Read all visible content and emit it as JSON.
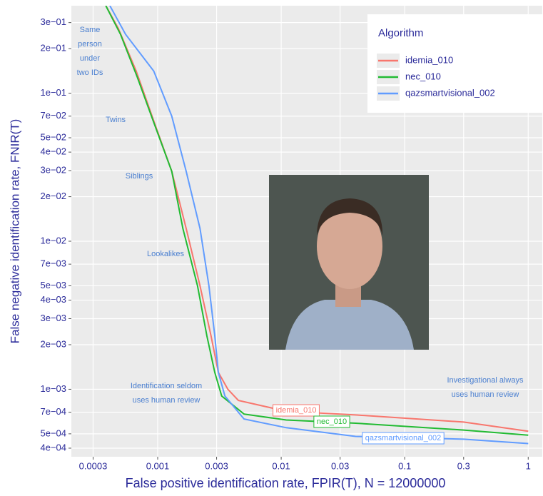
{
  "chart_data": {
    "type": "line",
    "x_label": "False positive identification rate, FPIR(T), N = 12000000",
    "y_label": "False negative identification rate, FNIR(T)",
    "log_x": true,
    "log_y": true,
    "grid": true,
    "xlim": [
      0.0002,
      1.3
    ],
    "ylim": [
      0.00035,
      0.39
    ],
    "xticks": [
      0.0003,
      0.001,
      0.003,
      0.01,
      0.03,
      0.1,
      0.3,
      1
    ],
    "yticks": [
      {
        "value": 0.3,
        "label": "3e−01"
      },
      {
        "value": 0.2,
        "label": "2e−01"
      },
      {
        "value": 0.1,
        "label": "1e−01"
      },
      {
        "value": 0.07,
        "label": "7e−02"
      },
      {
        "value": 0.05,
        "label": "5e−02"
      },
      {
        "value": 0.04,
        "label": "4e−02"
      },
      {
        "value": 0.03,
        "label": "3e−02"
      },
      {
        "value": 0.02,
        "label": "2e−02"
      },
      {
        "value": 0.01,
        "label": "1e−02"
      },
      {
        "value": 0.007,
        "label": "7e−03"
      },
      {
        "value": 0.005,
        "label": "5e−03"
      },
      {
        "value": 0.004,
        "label": "4e−03"
      },
      {
        "value": 0.003,
        "label": "3e−03"
      },
      {
        "value": 0.002,
        "label": "2e−03"
      },
      {
        "value": 0.001,
        "label": "1e−03"
      },
      {
        "value": 0.0007,
        "label": "7e−04"
      },
      {
        "value": 0.0005,
        "label": "5e−04"
      },
      {
        "value": 0.0004,
        "label": "4e−04"
      }
    ],
    "legend": {
      "title": "Algorithm",
      "position": "top-right"
    },
    "series": [
      {
        "name": "idemia_010",
        "color": "#f8766d",
        "x": [
          0.00038,
          0.00048,
          0.00067,
          0.00093,
          0.0013,
          0.0017,
          0.0022,
          0.0027,
          0.0031,
          0.0037,
          0.0045,
          0.011,
          0.041,
          0.3,
          1.0
        ],
        "values": [
          0.39,
          0.274,
          0.141,
          0.065,
          0.0297,
          0.0122,
          0.005,
          0.0023,
          0.0013,
          0.001,
          0.00084,
          0.00071,
          0.00067,
          0.0006,
          0.00052
        ]
      },
      {
        "name": "nec_010",
        "color": "#22bb33",
        "x": [
          0.00038,
          0.0005,
          0.00068,
          0.00092,
          0.0013,
          0.0016,
          0.0021,
          0.0025,
          0.0029,
          0.0033,
          0.005,
          0.011,
          0.04,
          0.3,
          1.0
        ],
        "values": [
          0.39,
          0.25,
          0.13,
          0.065,
          0.0297,
          0.0122,
          0.005,
          0.0023,
          0.0013,
          0.0009,
          0.00068,
          0.00062,
          0.00059,
          0.00053,
          0.00049
        ]
      },
      {
        "name": "qazsmartvisional_002",
        "color": "#619cff",
        "x": [
          0.00041,
          0.00055,
          0.00093,
          0.0013,
          0.0017,
          0.0022,
          0.0026,
          0.0029,
          0.0031,
          0.0035,
          0.005,
          0.011,
          0.04,
          0.3,
          1.0
        ],
        "values": [
          0.39,
          0.25,
          0.141,
          0.07,
          0.0297,
          0.0122,
          0.005,
          0.0023,
          0.0013,
          0.0009,
          0.00063,
          0.00055,
          0.00048,
          0.00046,
          0.00043
        ]
      }
    ],
    "annotations": [
      {
        "lines": [
          "Same",
          "person",
          "under",
          "two IDs"
        ]
      },
      {
        "lines": [
          "Twins"
        ]
      },
      {
        "lines": [
          "Siblings"
        ]
      },
      {
        "lines": [
          "Lookalikes"
        ]
      },
      {
        "lines": [
          "Identification seldom",
          "uses human review"
        ]
      },
      {
        "lines": [
          "Investigational always",
          "uses human review"
        ]
      }
    ]
  }
}
